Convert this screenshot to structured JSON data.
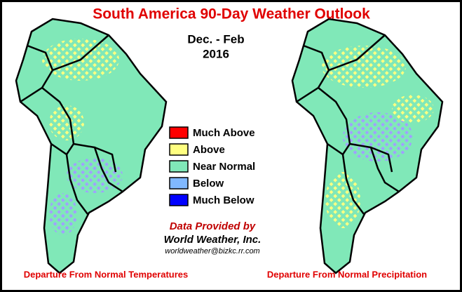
{
  "title": "South America 90-Day Weather Outlook",
  "period": "Dec. - Feb",
  "year": "2016",
  "legend": [
    {
      "label": "Much Above",
      "color": "#ff0000"
    },
    {
      "label": "Above",
      "color": "#ffff80"
    },
    {
      "label": "Near Normal",
      "color": "#80e8b8"
    },
    {
      "label": "Below",
      "color": "#80b8ff"
    },
    {
      "label": "Much Below",
      "color": "#0000ff"
    }
  ],
  "credits": [
    "Data Provided by",
    "World Weather, Inc.",
    "worldweather@bizkc.rr.com"
  ],
  "maps": [
    {
      "caption": "Departure From Normal Temperatures"
    },
    {
      "caption": "Departure From Normal Precipitation"
    }
  ]
}
